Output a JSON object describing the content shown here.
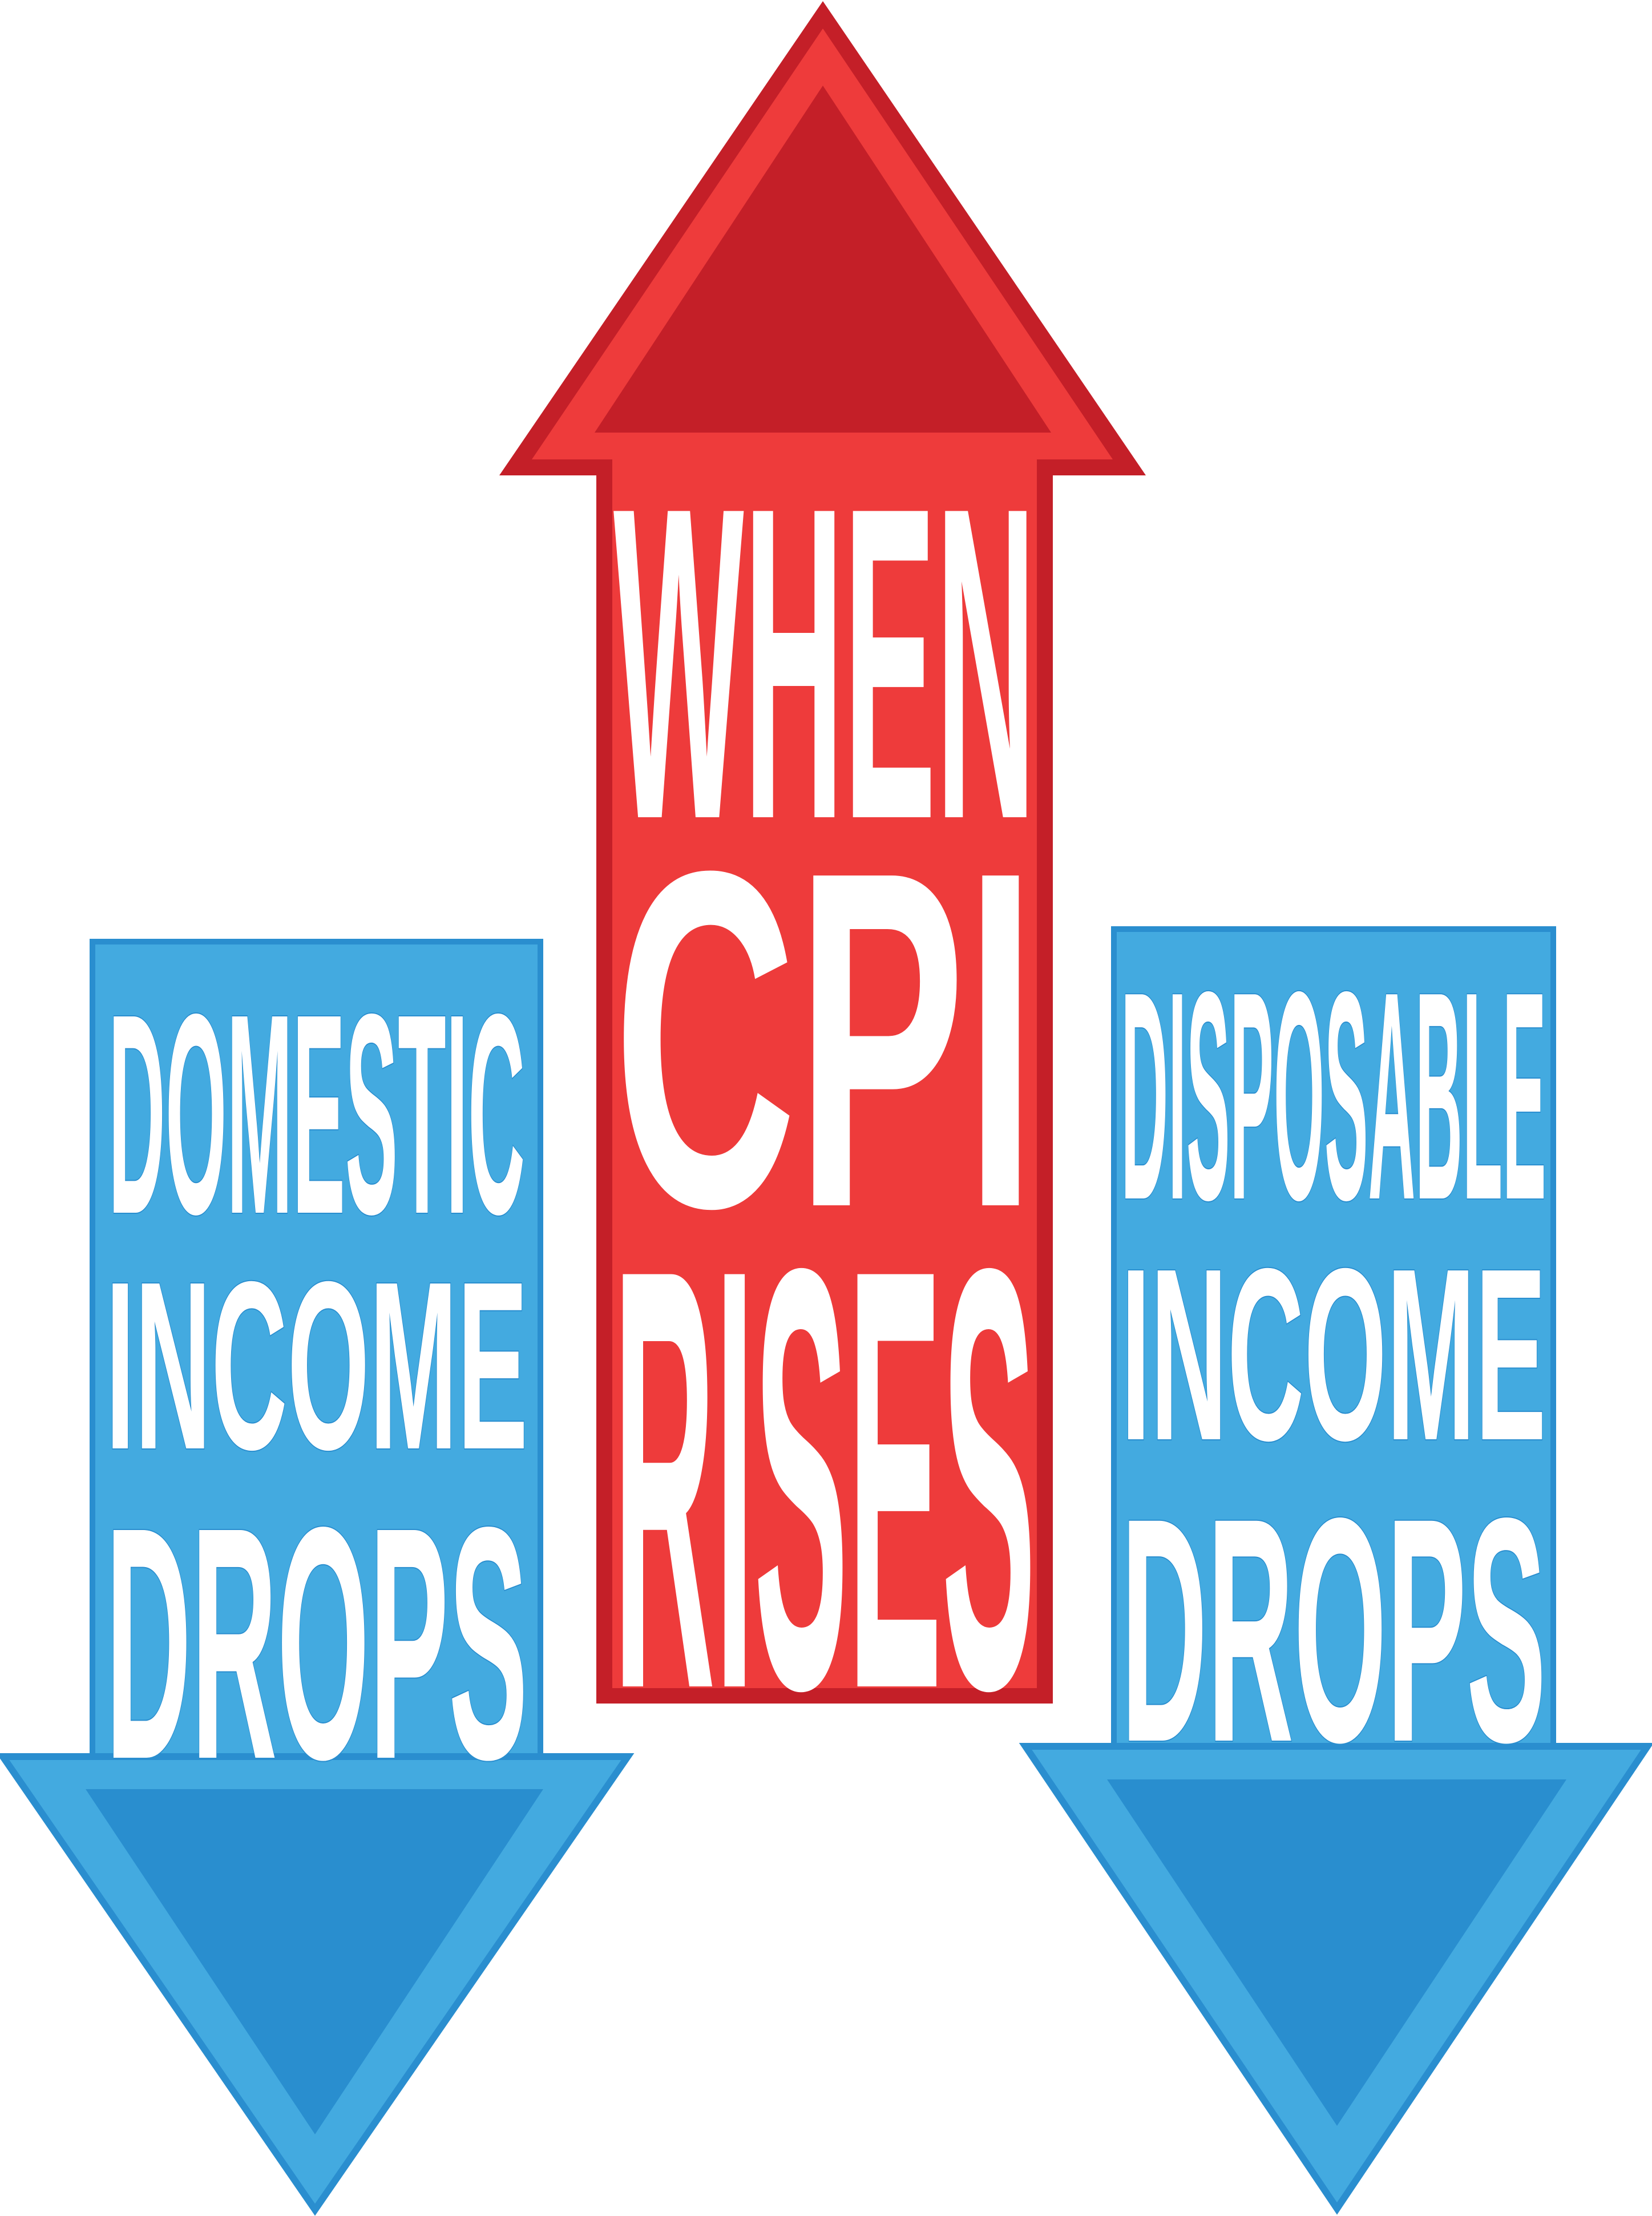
{
  "colors": {
    "background": "#ffffff",
    "red_outline": "#c41f28",
    "red_fill": "#ee3b3b",
    "red_inner": "#c41f28",
    "blue_outline": "#2a8ecf",
    "blue_fill": "#43aae0",
    "blue_inner": "#298ecf",
    "text": "#ffffff"
  },
  "left_arrow": {
    "direction": "down",
    "line1": "DOMESTIC",
    "line2": "INCOME",
    "line3": "DROPS"
  },
  "center_arrow": {
    "direction": "up",
    "line1": "WHEN",
    "line2": "CPI",
    "line3": "RISES"
  },
  "right_arrow": {
    "direction": "down",
    "line1": "DISPOSABLE",
    "line2": "INCOME",
    "line3": "DROPS"
  }
}
